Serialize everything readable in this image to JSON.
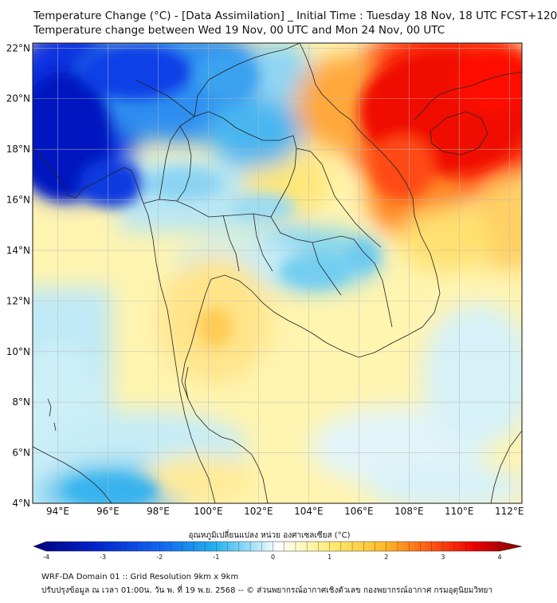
{
  "header": {
    "title_line1": "Temperature Change (°C) - [Data Assimilation] _ Initial Time : Tuesday 18 Nov, 18 UTC FCST+120",
    "title_line2": "Temperature change between Wed 19 Nov, 00 UTC and Mon 24 Nov, 00 UTC"
  },
  "map": {
    "lat_labels": [
      "22°N",
      "20°N",
      "18°N",
      "16°N",
      "14°N",
      "12°N",
      "10°N",
      "8°N",
      "6°N",
      "4°N"
    ],
    "lon_labels": [
      "94°E",
      "96°E",
      "98°E",
      "100°E",
      "102°E",
      "104°E",
      "106°E",
      "108°E",
      "110°E",
      "112°E"
    ],
    "lat_values": [
      22,
      20,
      18,
      16,
      14,
      12,
      10,
      8,
      6,
      4
    ],
    "lon_values": [
      94,
      96,
      98,
      100,
      102,
      104,
      106,
      108,
      110,
      112
    ],
    "lat_range": [
      4,
      22.2
    ],
    "lon_range": [
      93,
      112.5
    ]
  },
  "colorbar": {
    "title": "อุณหภูมิเปลี่ยนแปลง หน่วย องศาเซลเซียส (°C)",
    "tick_labels": [
      "-4",
      "-3",
      "-2",
      "-1",
      "0",
      "1",
      "2",
      "3",
      "4"
    ],
    "range": [
      -4,
      4
    ],
    "colors": [
      "#0000a8",
      "#0028d8",
      "#1070f0",
      "#30b0f0",
      "#a0e8f8",
      "#ffffff",
      "#fff8b0",
      "#ffe060",
      "#ffb020",
      "#ff6010",
      "#ff1000",
      "#d00000",
      "#900000"
    ]
  },
  "footer": {
    "line1": "WRF-DA Domain 01 :: Grid Resolution 9km x 9km",
    "line2": "ปรับปรุงข้อมูล ณ เวลา 01:00น. วัน พ. ที่ 19 พ.ย. 2568 -- © ส่วนพยากรณ์อากาศเชิงตัวเลข กองพยากรณ์อากาศ กรมอุตุนิยมวิทยา"
  }
}
